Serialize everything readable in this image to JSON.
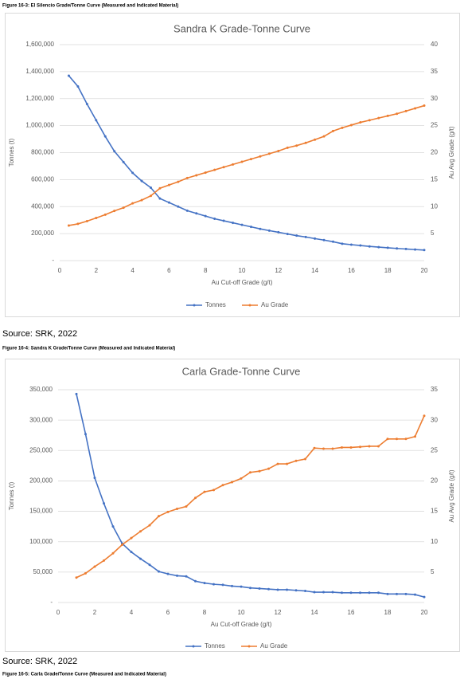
{
  "figure_caption_top": "Figure 16-3: El Silencio Grade/Tonne Curve (Measured and Indicated Material)",
  "source_1": "Source: SRK, 2022",
  "figure_caption_middle": "Figure 16-4: Sandra K Grade/Tonne Curve (Measured and Indicated Material)",
  "source_2": "Source: SRK, 2022",
  "figure_caption_bottom": "Figure 16-5: Carla Grade/Tonne Curve (Measured and Indicated Material)",
  "chart_data": [
    {
      "type": "line",
      "title": "Sandra K Grade-Tonne Curve",
      "x_label": "Au Cut-off Grade (g/t)",
      "y_label": "Tonnes (t)",
      "y2_label": "Au Avg Grade (g/t)",
      "x": [
        0.5,
        1,
        1.5,
        2,
        2.5,
        3,
        3.5,
        4,
        4.5,
        5,
        5.5,
        6,
        6.5,
        7,
        7.5,
        8,
        8.5,
        9,
        9.5,
        10,
        10.5,
        11,
        11.5,
        12,
        12.5,
        13,
        13.5,
        14,
        14.5,
        15,
        15.5,
        16,
        16.5,
        17,
        17.5,
        18,
        18.5,
        19,
        19.5,
        20
      ],
      "series": [
        {
          "name": "Tonnes",
          "color": "#4472c4",
          "axis": "y",
          "values": [
            1370000,
            1290000,
            1160000,
            1040000,
            920000,
            810000,
            730000,
            650000,
            590000,
            540000,
            460000,
            430000,
            400000,
            370000,
            350000,
            330000,
            310000,
            295000,
            280000,
            265000,
            250000,
            235000,
            222000,
            210000,
            197000,
            185000,
            175000,
            163000,
            152000,
            140000,
            125000,
            118000,
            112000,
            105000,
            100000,
            95000,
            90000,
            86000,
            82000,
            78000
          ]
        },
        {
          "name": "Au Grade",
          "color": "#ed7d31",
          "axis": "y2",
          "values": [
            6.5,
            6.8,
            7.3,
            7.9,
            8.5,
            9.2,
            9.8,
            10.6,
            11.2,
            12,
            13.4,
            14,
            14.6,
            15.3,
            15.8,
            16.3,
            16.8,
            17.3,
            17.8,
            18.3,
            18.8,
            19.3,
            19.8,
            20.3,
            20.9,
            21.3,
            21.8,
            22.4,
            23,
            24,
            24.6,
            25.1,
            25.6,
            26,
            26.4,
            26.8,
            27.2,
            27.7,
            28.2,
            28.7
          ]
        }
      ],
      "xlim": [
        0,
        20
      ],
      "xticks": [
        0,
        2,
        4,
        6,
        8,
        10,
        12,
        14,
        16,
        18,
        20
      ],
      "ylim": [
        0,
        1600000
      ],
      "yticks": [
        {
          "value": 0,
          "label": "-"
        },
        {
          "value": 200000,
          "label": "200,000"
        },
        {
          "value": 400000,
          "label": "400,000"
        },
        {
          "value": 600000,
          "label": "600,000"
        },
        {
          "value": 800000,
          "label": "800,000"
        },
        {
          "value": 1000000,
          "label": "1,000,000"
        },
        {
          "value": 1200000,
          "label": "1,200,000"
        },
        {
          "value": 1400000,
          "label": "1,400,000"
        },
        {
          "value": 1600000,
          "label": "1,600,000"
        }
      ],
      "y2lim": [
        0,
        40
      ],
      "y2ticks": [
        5,
        10,
        15,
        20,
        25,
        30,
        35,
        40
      ],
      "grid": true,
      "legend": "bottom"
    },
    {
      "type": "line",
      "title": "Carla Grade-Tonne Curve",
      "x_label": "Au Cut-off Grade (g/t)",
      "y_label": "Tonnes (t)",
      "y2_label": "Au Avg Grade (g/t)",
      "x": [
        1,
        1.5,
        2,
        2.5,
        3,
        3.5,
        4,
        4.5,
        5,
        5.5,
        6,
        6.5,
        7,
        7.5,
        8,
        8.5,
        9,
        9.5,
        10,
        10.5,
        11,
        11.5,
        12,
        12.5,
        13,
        13.5,
        14,
        14.5,
        15,
        15.5,
        16,
        16.5,
        17,
        17.5,
        18,
        18.5,
        19,
        19.5,
        20
      ],
      "series": [
        {
          "name": "Tonnes",
          "color": "#4472c4",
          "axis": "y",
          "values": [
            343000,
            277000,
            205000,
            163000,
            125000,
            97000,
            83000,
            72000,
            62000,
            51000,
            47000,
            44000,
            43000,
            35000,
            32000,
            30000,
            29000,
            27000,
            26000,
            24000,
            23000,
            22000,
            21000,
            21000,
            20000,
            19000,
            17000,
            17000,
            17000,
            16000,
            16000,
            16000,
            16000,
            16000,
            14000,
            14000,
            14000,
            13000,
            9000
          ]
        },
        {
          "name": "Au Grade",
          "color": "#ed7d31",
          "axis": "y2",
          "values": [
            4.1,
            4.8,
            5.9,
            6.9,
            8.1,
            9.5,
            10.6,
            11.7,
            12.7,
            14.2,
            14.9,
            15.4,
            15.8,
            17.2,
            18.2,
            18.5,
            19.3,
            19.8,
            20.4,
            21.4,
            21.6,
            22,
            22.8,
            22.8,
            23.3,
            23.6,
            25.4,
            25.3,
            25.3,
            25.5,
            25.5,
            25.6,
            25.7,
            25.7,
            26.9,
            26.9,
            26.9,
            27.3,
            30.7
          ]
        }
      ],
      "xlim": [
        0,
        20
      ],
      "xticks": [
        0,
        2,
        4,
        6,
        8,
        10,
        12,
        14,
        16,
        18,
        20
      ],
      "ylim": [
        0,
        350000
      ],
      "yticks": [
        {
          "value": 0,
          "label": "-"
        },
        {
          "value": 50000,
          "label": "50,000"
        },
        {
          "value": 100000,
          "label": "100,000"
        },
        {
          "value": 150000,
          "label": "150,000"
        },
        {
          "value": 200000,
          "label": "200,000"
        },
        {
          "value": 250000,
          "label": "250,000"
        },
        {
          "value": 300000,
          "label": "300,000"
        },
        {
          "value": 350000,
          "label": "350,000"
        }
      ],
      "y2lim": [
        0,
        35
      ],
      "y2ticks": [
        5,
        10,
        15,
        20,
        25,
        30,
        35
      ],
      "grid": true,
      "legend": "bottom"
    }
  ]
}
